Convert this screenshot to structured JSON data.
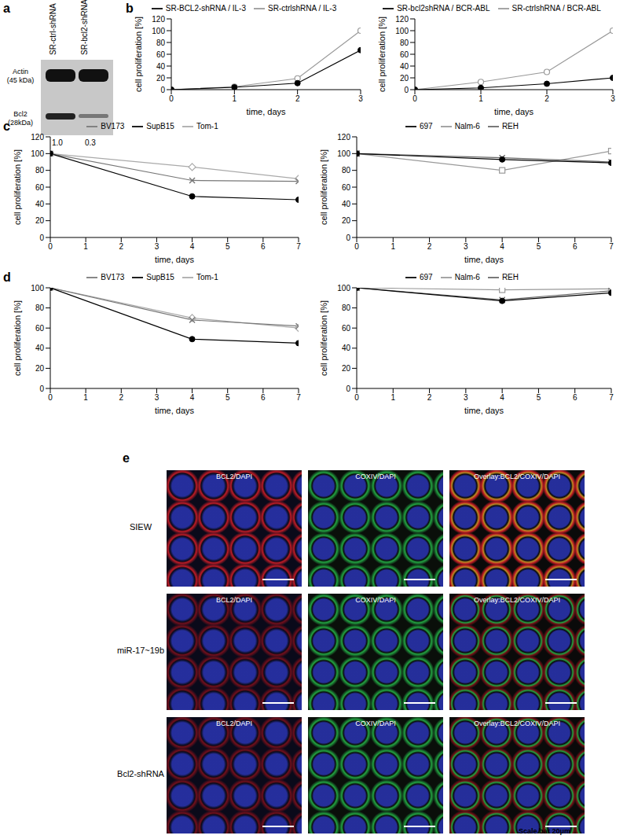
{
  "panel_labels": [
    "a",
    "b",
    "c",
    "d",
    "e"
  ],
  "blot": {
    "lanes": [
      "SR-ctrl-shRNA",
      "SR-bcl2-shRNA"
    ],
    "bands": [
      {
        "name": "Actin",
        "size": "(45 kDa)"
      },
      {
        "name": "Bcl2",
        "size": "(28kDa)"
      }
    ],
    "quantification": [
      "1.0",
      "0.3"
    ]
  },
  "chart_data": [
    {
      "type": "line",
      "x": [
        0,
        1,
        2,
        3
      ],
      "xlim": [
        0,
        3
      ],
      "xticks": [
        0,
        1,
        2,
        3
      ],
      "ylim": [
        0,
        120
      ],
      "yticks": [
        0,
        20,
        40,
        60,
        80,
        100,
        120
      ],
      "x_label": "time, days",
      "y_label": "cell proliferation [%]",
      "legend": "top",
      "series": [
        {
          "name": "SR-ctrlshRNA / IL-3",
          "color": "#999999",
          "marker": "circle_open",
          "values": [
            0,
            5,
            19,
            100
          ]
        },
        {
          "name": "SR-BCL2-shRNA / IL-3",
          "color": "#000000",
          "marker": "circle",
          "values": [
            0,
            4,
            11,
            67
          ]
        }
      ]
    },
    {
      "type": "line",
      "x": [
        0,
        1,
        2,
        3
      ],
      "xlim": [
        0,
        3
      ],
      "xticks": [
        0,
        1,
        2,
        3
      ],
      "ylim": [
        0,
        120
      ],
      "yticks": [
        0,
        20,
        40,
        60,
        80,
        100,
        120
      ],
      "x_label": "time, days",
      "y_label": "cell proliferation [%]",
      "legend": "top",
      "series": [
        {
          "name": "SR-ctrlshRNA / BCR-ABL",
          "color": "#999999",
          "marker": "circle_open",
          "values": [
            0,
            13,
            30,
            100
          ]
        },
        {
          "name": "SR-bcl2shRNA / BCR-ABL",
          "color": "#000000",
          "marker": "circle",
          "values": [
            0,
            3,
            10,
            20
          ]
        }
      ]
    },
    {
      "type": "line",
      "x": [
        0,
        4,
        7
      ],
      "xlim": [
        0,
        7
      ],
      "xticks": [
        0,
        1,
        2,
        3,
        4,
        5,
        6,
        7
      ],
      "ylim": [
        0,
        120
      ],
      "yticks": [
        0,
        20,
        40,
        60,
        80,
        100,
        120
      ],
      "x_label": "time, days",
      "y_label": "cell proliferation [%]",
      "legend": "top",
      "series": [
        {
          "name": "Tom-1",
          "color": "#aaaaaa",
          "marker": "diamond_open",
          "values": [
            100,
            84,
            70
          ]
        },
        {
          "name": "BV173",
          "color": "#777777",
          "marker": "cross",
          "values": [
            100,
            68,
            67
          ]
        },
        {
          "name": "SupB15",
          "color": "#000000",
          "marker": "circle",
          "values": [
            100,
            49,
            45
          ]
        }
      ]
    },
    {
      "type": "line",
      "x": [
        0,
        4,
        7
      ],
      "xlim": [
        0,
        7
      ],
      "xticks": [
        0,
        1,
        2,
        3,
        4,
        5,
        6,
        7
      ],
      "ylim": [
        0,
        120
      ],
      "yticks": [
        0,
        20,
        40,
        60,
        80,
        100,
        120
      ],
      "x_label": "time, days",
      "y_label": "cell proliferation [%]",
      "legend": "top",
      "series": [
        {
          "name": "Nalm-6",
          "color": "#999999",
          "marker": "square_open",
          "values": [
            100,
            80,
            103
          ]
        },
        {
          "name": "REH",
          "color": "#666666",
          "marker": "cross",
          "values": [
            100,
            95,
            90
          ]
        },
        {
          "name": "697",
          "color": "#000000",
          "marker": "circle",
          "values": [
            100,
            93,
            89
          ]
        }
      ]
    },
    {
      "type": "line",
      "x": [
        0,
        4,
        7
      ],
      "xlim": [
        0,
        7
      ],
      "xticks": [
        0,
        1,
        2,
        3,
        4,
        5,
        6,
        7
      ],
      "ylim": [
        0,
        100
      ],
      "yticks": [
        0,
        20,
        40,
        60,
        80,
        100
      ],
      "x_label": "time, days",
      "y_label": "cell proliferation [%]",
      "legend": "top",
      "series": [
        {
          "name": "Tom-1",
          "color": "#aaaaaa",
          "marker": "diamond_open",
          "values": [
            100,
            70,
            60
          ]
        },
        {
          "name": "BV173",
          "color": "#777777",
          "marker": "cross",
          "values": [
            100,
            68,
            62
          ]
        },
        {
          "name": "SupB15",
          "color": "#000000",
          "marker": "circle",
          "values": [
            100,
            49,
            45
          ]
        }
      ]
    },
    {
      "type": "line",
      "x": [
        0,
        4,
        7
      ],
      "xlim": [
        0,
        7
      ],
      "xticks": [
        0,
        1,
        2,
        3,
        4,
        5,
        6,
        7
      ],
      "ylim": [
        0,
        100
      ],
      "yticks": [
        0,
        20,
        40,
        60,
        80,
        100
      ],
      "x_label": "time, days",
      "y_label": "cell proliferation [%]",
      "legend": "top",
      "series": [
        {
          "name": "Nalm-6",
          "color": "#999999",
          "marker": "square_open",
          "values": [
            100,
            98,
            99
          ]
        },
        {
          "name": "REH",
          "color": "#666666",
          "marker": "cross",
          "values": [
            100,
            88,
            97
          ]
        },
        {
          "name": "697",
          "color": "#000000",
          "marker": "circle",
          "values": [
            100,
            87,
            95
          ]
        }
      ]
    }
  ],
  "microscopy": {
    "rows": [
      "SIEW",
      "miR-17~19b",
      "Bcl2-shRNA"
    ],
    "columns": [
      "BCL2/DAPI",
      "COXIV/DAPI",
      "Overlay:BCL2/COXIV/DAPI"
    ],
    "scale_bar": "Scale bar 20μm"
  }
}
